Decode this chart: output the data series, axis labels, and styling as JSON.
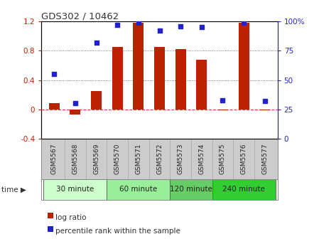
{
  "title": "GDS302 / 10462",
  "samples": [
    "GSM5567",
    "GSM5568",
    "GSM5569",
    "GSM5570",
    "GSM5571",
    "GSM5572",
    "GSM5573",
    "GSM5574",
    "GSM5575",
    "GSM5576",
    "GSM5577"
  ],
  "log_ratio": [
    0.08,
    -0.07,
    0.25,
    0.85,
    1.18,
    0.85,
    0.82,
    0.68,
    -0.01,
    1.18,
    -0.01
  ],
  "percentile": [
    55,
    30,
    82,
    97,
    99,
    92,
    96,
    95,
    33,
    99,
    32
  ],
  "bar_color": "#bb2200",
  "dot_color": "#2222cc",
  "ylim_left": [
    -0.4,
    1.2
  ],
  "ylim_right": [
    0,
    100
  ],
  "yticks_left": [
    -0.4,
    0.0,
    0.4,
    0.8,
    1.2
  ],
  "yticks_right": [
    0,
    25,
    50,
    75,
    100
  ],
  "ytick_labels_right": [
    "0",
    "25",
    "50",
    "75",
    "100%"
  ],
  "groups": [
    {
      "label": "30 minute",
      "indices": [
        0,
        1,
        2
      ]
    },
    {
      "label": "60 minute",
      "indices": [
        3,
        4,
        5
      ]
    },
    {
      "label": "120 minute",
      "indices": [
        6,
        7
      ]
    },
    {
      "label": "240 minute",
      "indices": [
        8,
        9,
        10
      ]
    }
  ],
  "group_colors": [
    "#ccffcc",
    "#99ee99",
    "#66cc66",
    "#33cc33"
  ],
  "zero_line_color": "#cc4444",
  "grid_color": "#333333",
  "bg_color": "#ffffff",
  "sample_label_bg": "#cccccc",
  "bar_width": 0.5,
  "dot_size": 25,
  "legend_log": "log ratio",
  "legend_pct": "percentile rank within the sample"
}
